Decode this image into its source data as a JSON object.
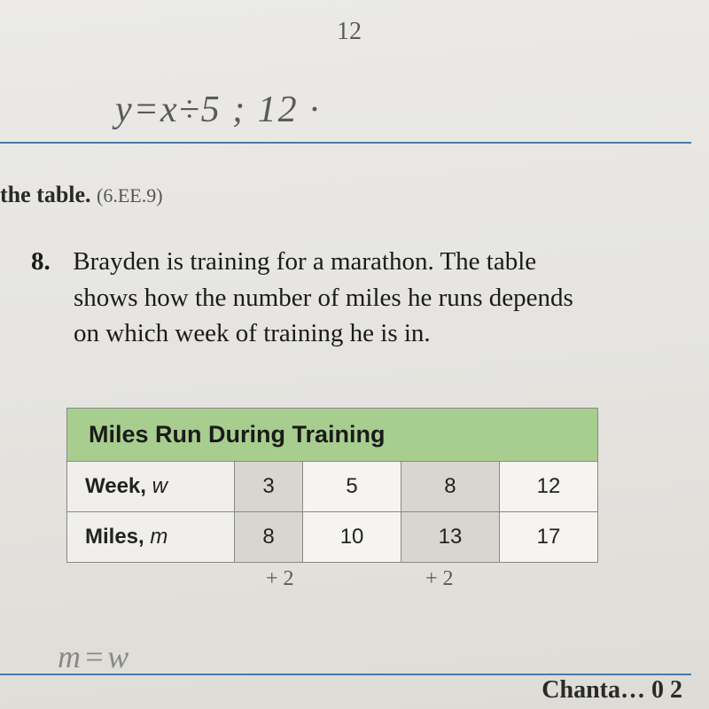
{
  "handwriting": {
    "top_12": "12",
    "equation": "y=x÷5 ; 12 ·",
    "plus2_a": "+ 2",
    "plus2_b": "+ 2",
    "bottom": "m=w"
  },
  "section": {
    "prefix": "the table.",
    "ref": "(6.EE.9)"
  },
  "question": {
    "number": "8.",
    "line1": "Brayden is training for a marathon. The table",
    "line2": "shows how the number of miles he runs depends",
    "line3": "on which week of training he is in."
  },
  "table": {
    "title": "Miles Run During Training",
    "row1_label": "Week,",
    "row1_var": "w",
    "row2_label": "Miles,",
    "row2_var": "m",
    "weeks": [
      "3",
      "5",
      "8",
      "12"
    ],
    "miles": [
      "8",
      "10",
      "13",
      "17"
    ],
    "header_bg": "#a8ce8f",
    "cell_bg": "#f0efeb",
    "shaded_bg": "#d8d6d0",
    "border_color": "#888888",
    "title_fontsize": 27,
    "cell_fontsize": 24
  },
  "corner": "Chanta… 0    2",
  "colors": {
    "page_bg": "#e8e7e3",
    "blue_line": "#4a7ba8",
    "text": "#1a1a1a",
    "handwriting": "#5a5a5a"
  }
}
